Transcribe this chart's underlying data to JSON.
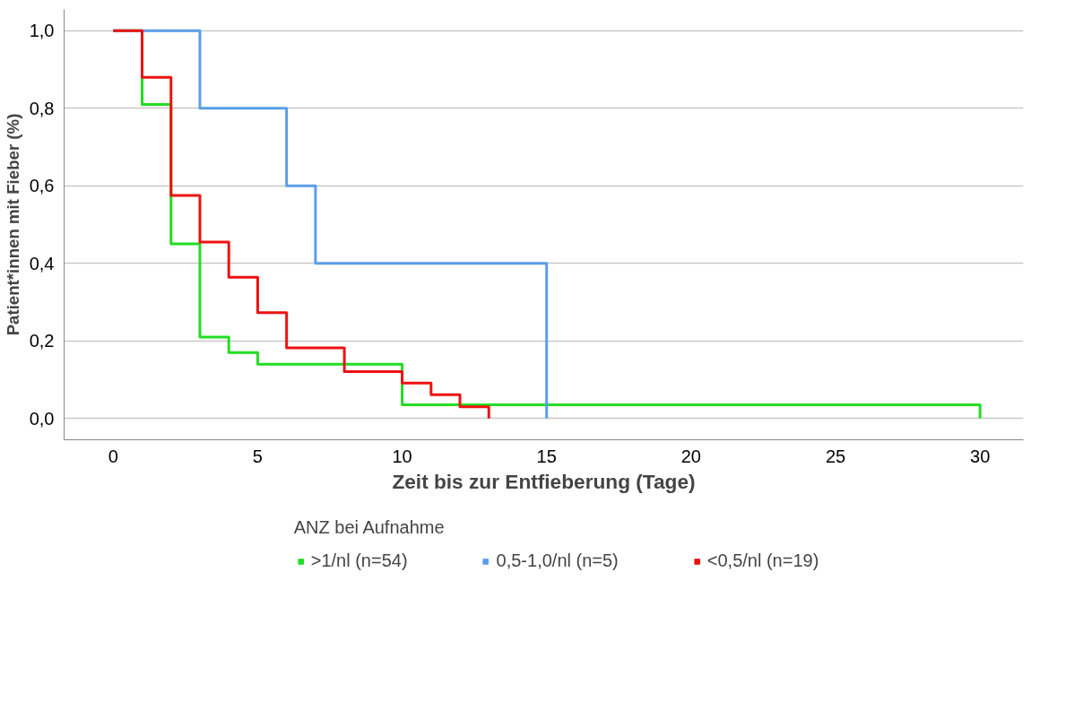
{
  "chart_data": {
    "type": "step",
    "xlabel": "Zeit bis zur Entfieberung (Tage)",
    "ylabel": "Patient*innen mit Fieber (%)",
    "legend_title": "ANZ bei Aufnahme",
    "legend": "bottom",
    "grid": "y",
    "xlim": [
      -1.7,
      31.5
    ],
    "xticks": [
      0,
      5,
      10,
      15,
      20,
      25,
      30
    ],
    "ylim": [
      -0.055,
      1.055
    ],
    "yticks": [
      {
        "value": 0,
        "label": "0,0"
      },
      {
        "value": 0.2,
        "label": "0,2"
      },
      {
        "value": 0.4,
        "label": "0,4"
      },
      {
        "value": 0.6,
        "label": "0,6"
      },
      {
        "value": 0.8,
        "label": "0,8"
      },
      {
        "value": 1,
        "label": "1,0"
      }
    ],
    "series": [
      {
        "name": ">1/nl (n=54)",
        "color": "#22dd22",
        "x": [
          0,
          1,
          2,
          3,
          4,
          5,
          10,
          30
        ],
        "values": [
          1,
          0.81,
          0.45,
          0.21,
          0.17,
          0.14,
          0.035,
          0
        ]
      },
      {
        "name": "0,5-1,0/nl (n=5)",
        "color": "#5b9ee8",
        "x": [
          0,
          3,
          6,
          7,
          15
        ],
        "values": [
          1,
          0.8,
          0.6,
          0.4,
          0
        ]
      },
      {
        "name": "<0,5/nl (n=19)",
        "color": "#ee1111",
        "x": [
          0,
          1,
          2,
          3,
          4,
          5,
          6,
          8,
          10,
          11,
          12,
          13
        ],
        "values": [
          1,
          0.88,
          0.575,
          0.455,
          0.364,
          0.273,
          0.182,
          0.121,
          0.091,
          0.061,
          0.03,
          0
        ]
      }
    ]
  }
}
